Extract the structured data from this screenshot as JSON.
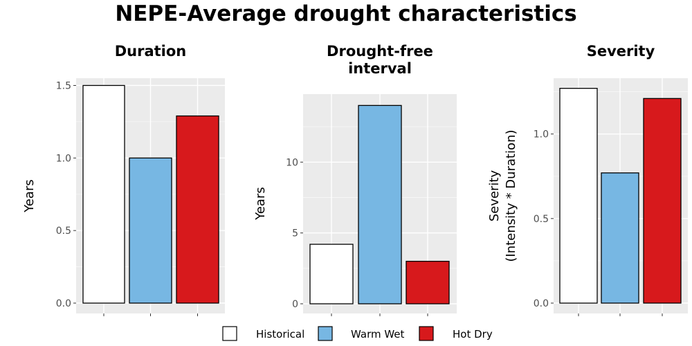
{
  "title": "NEPE-Average drought characteristics",
  "legend": {
    "placement": "bottom",
    "entries": [
      {
        "label": "Historical",
        "color": "#ffffff"
      },
      {
        "label": "Warm Wet",
        "color": "#77b7e3"
      },
      {
        "label": "Hot Dry",
        "color": "#d7191c"
      }
    ]
  },
  "chart_data": [
    {
      "type": "bar",
      "title_lines": [
        "Duration"
      ],
      "ylabel_lines": [
        "Years"
      ],
      "categories": [
        "Historical",
        "Warm Wet",
        "Hot Dry"
      ],
      "values": [
        1.5,
        1.0,
        1.29
      ],
      "ylim": [
        0,
        1.55
      ],
      "yticks": [
        0,
        0.5,
        1.0,
        1.5
      ],
      "ytick_labels": [
        "0.0",
        "0.5",
        "1.0",
        "1.5"
      ],
      "grid": true
    },
    {
      "type": "bar",
      "title_lines": [
        "Drought-free",
        "interval"
      ],
      "ylabel_lines": [
        "Years"
      ],
      "categories": [
        "Historical",
        "Warm Wet",
        "Hot Dry"
      ],
      "values": [
        4.2,
        14.0,
        3.0
      ],
      "ylim": [
        0,
        14.8
      ],
      "yticks": [
        0,
        5,
        10
      ],
      "ytick_labels": [
        "0",
        "5",
        "10"
      ],
      "grid": true
    },
    {
      "type": "bar",
      "title_lines": [
        "Severity"
      ],
      "ylabel_lines": [
        "Severity",
        "(Intensity * Duration)"
      ],
      "categories": [
        "Historical",
        "Warm Wet",
        "Hot Dry"
      ],
      "values": [
        1.27,
        0.77,
        1.21
      ],
      "ylim": [
        0,
        1.33
      ],
      "yticks": [
        0,
        0.5,
        1.0
      ],
      "ytick_labels": [
        "0.0",
        "0.5",
        "1.0"
      ],
      "grid": true
    }
  ]
}
